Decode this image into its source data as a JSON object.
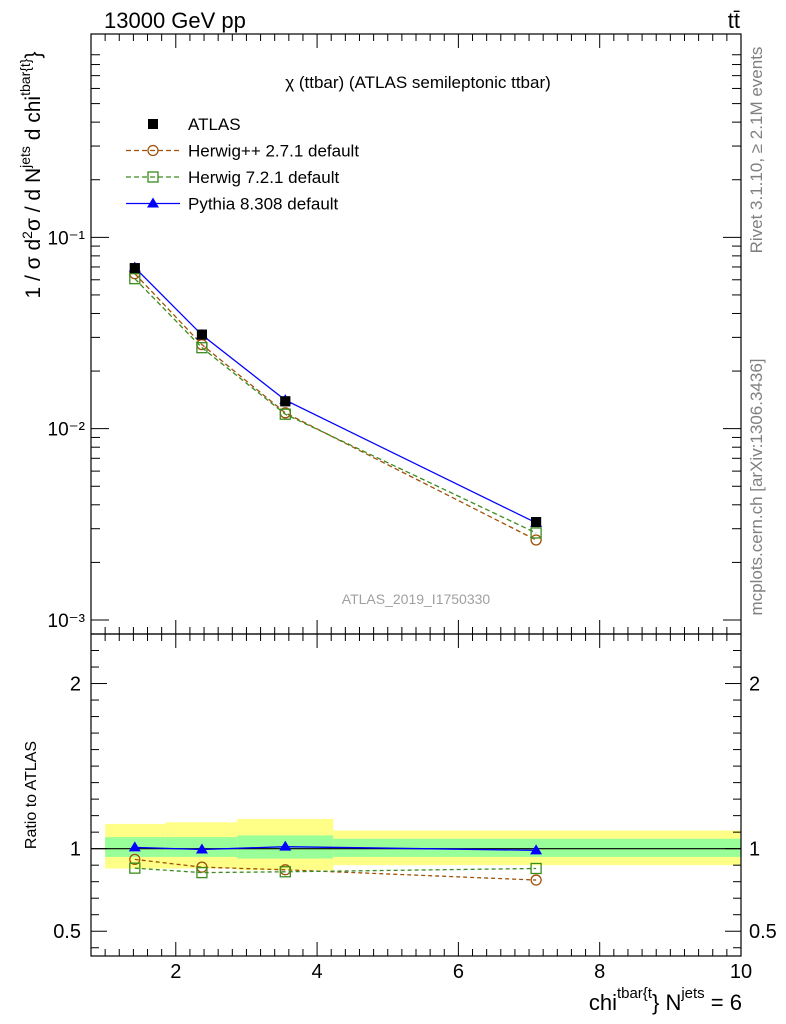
{
  "header": {
    "energy_label": "13000 GeV pp",
    "process_label": "tt̄",
    "rivet_label": "Rivet 3.1.10, ≥ 2.1M events",
    "mcplots_label": "mcplots.cern.ch [arXiv:1306.3436]"
  },
  "colors": {
    "atlas": "#000000",
    "herwig_pp": "#a0520a",
    "herwig7": "#3a8c1e",
    "pythia": "#0000ff",
    "band_stat": "#99ff99",
    "band_total": "#ffff88",
    "watermark": "#999999"
  },
  "chart_data": [
    {
      "type": "line",
      "title": "χ (ttbar) (ATLAS semileptonic ttbar)",
      "ylabel": "1 / σ d²σ / d N^jets d chi^tbar{t}",
      "yscale": "log",
      "ylim": [
        0.001,
        1.0
      ],
      "xlim": [
        0.8,
        10.0
      ],
      "y_tick_labels": [
        "10⁻³",
        "10⁻²",
        "10⁻¹"
      ],
      "watermark": "ATLAS_2019_I1750330",
      "legend_position": "top-left",
      "x": [
        1.42,
        2.37,
        3.55,
        7.1
      ],
      "bins": [
        [
          1.0,
          1.86
        ],
        [
          1.86,
          2.87
        ],
        [
          2.87,
          4.23
        ],
        [
          4.23,
          10.0
        ]
      ],
      "series": [
        {
          "name": "ATLAS",
          "values": [
            0.069,
            0.031,
            0.0139,
            0.00325
          ],
          "style": "data-square"
        },
        {
          "name": "Herwig++ 2.7.1 default",
          "values": [
            0.0646,
            0.0275,
            0.0121,
            0.00262
          ],
          "style": "dashed-circle"
        },
        {
          "name": "Herwig 7.2.1 default",
          "values": [
            0.0608,
            0.0265,
            0.0119,
            0.00285
          ],
          "style": "dashed-square"
        },
        {
          "name": "Pythia 8.308 default",
          "values": [
            0.0695,
            0.0309,
            0.0141,
            0.00322
          ],
          "style": "solid-triangle"
        }
      ]
    },
    {
      "type": "line",
      "ylabel": "Ratio to ATLAS",
      "xlabel": "chi^tbar{t} N^jets = 6",
      "ylim": [
        0.35,
        2.3
      ],
      "xlim": [
        0.8,
        10.0
      ],
      "x_ticks": [
        2,
        4,
        6,
        8,
        10
      ],
      "y_ticks": [
        0.5,
        1,
        2
      ],
      "x": [
        1.42,
        2.37,
        3.55,
        7.1
      ],
      "bands": [
        {
          "x": [
            1.0,
            1.86
          ],
          "stat": [
            0.95,
            1.07
          ],
          "total": [
            0.88,
            1.15
          ]
        },
        {
          "x": [
            1.86,
            2.87
          ],
          "stat": [
            0.95,
            1.07
          ],
          "total": [
            0.88,
            1.16
          ]
        },
        {
          "x": [
            2.87,
            4.23
          ],
          "stat": [
            0.94,
            1.08
          ],
          "total": [
            0.87,
            1.18
          ]
        },
        {
          "x": [
            4.23,
            10.0
          ],
          "stat": [
            0.95,
            1.06
          ],
          "total": [
            0.9,
            1.11
          ]
        }
      ],
      "series": [
        {
          "name": "Herwig++ 2.7.1 default",
          "values": [
            0.935,
            0.888,
            0.872,
            0.81
          ]
        },
        {
          "name": "Herwig 7.2.1 default",
          "values": [
            0.882,
            0.855,
            0.86,
            0.88
          ]
        },
        {
          "name": "Pythia 8.308 default",
          "values": [
            1.008,
            0.995,
            1.012,
            0.99
          ]
        }
      ]
    }
  ]
}
